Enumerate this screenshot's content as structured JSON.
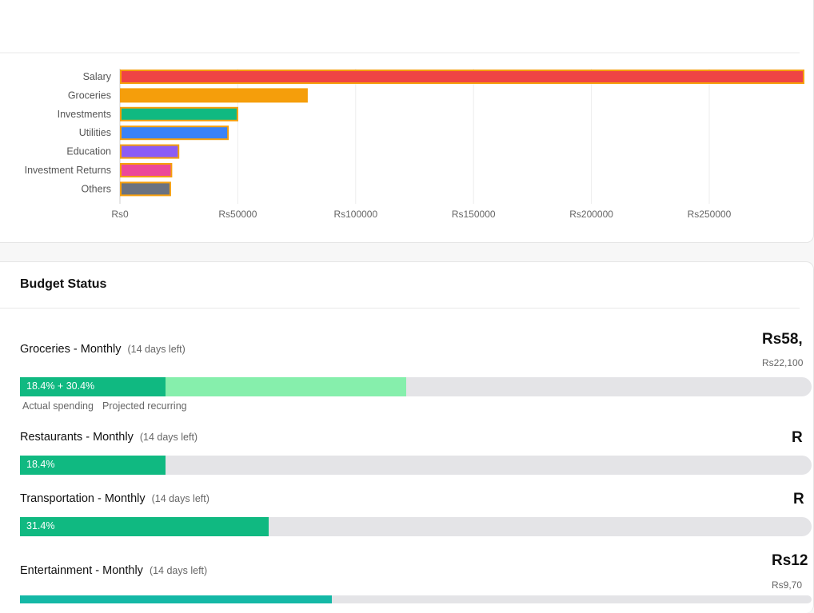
{
  "chart_data": {
    "type": "bar",
    "orientation": "horizontal",
    "categories": [
      "Salary",
      "Groceries",
      "Investments",
      "Utilities",
      "Education",
      "Investment Returns",
      "Others"
    ],
    "values": [
      300000,
      79000,
      49500,
      45500,
      24500,
      21500,
      21000
    ],
    "colors": [
      "#ef4444",
      "#f59e0b",
      "#10b981",
      "#3b82f6",
      "#8b5cf6",
      "#ec4899",
      "#6b7280"
    ],
    "xlim": [
      0,
      290000
    ],
    "xticks": [
      0,
      50000,
      100000,
      150000,
      200000,
      250000
    ],
    "xtick_labels": [
      "Rs0",
      "Rs50000",
      "Rs100000",
      "Rs150000",
      "Rs200000",
      "Rs250000"
    ],
    "grid": true
  },
  "budget": {
    "title": "Budget Status",
    "items": [
      {
        "name": "Groceries - Monthly",
        "days_left": "(14 days left)",
        "amount": "Rs58,",
        "sub_amount": "Rs22,100",
        "actual_pct": 18.4,
        "projected_pct": 30.4,
        "bar_label": "18.4% + 30.4%",
        "legend_actual": "Actual spending",
        "legend_projected": "Projected recurring"
      },
      {
        "name": "Restaurants - Monthly",
        "days_left": "(14 days left)",
        "amount": "R",
        "actual_pct": 18.4,
        "bar_label": "18.4%"
      },
      {
        "name": "Transportation - Monthly",
        "days_left": "(14 days left)",
        "amount": "R",
        "actual_pct": 31.4,
        "bar_label": "31.4%"
      },
      {
        "name": "Entertainment - Monthly",
        "days_left": "(14 days left)",
        "amount": "Rs12",
        "sub_amount": "Rs9,70"
      }
    ]
  }
}
